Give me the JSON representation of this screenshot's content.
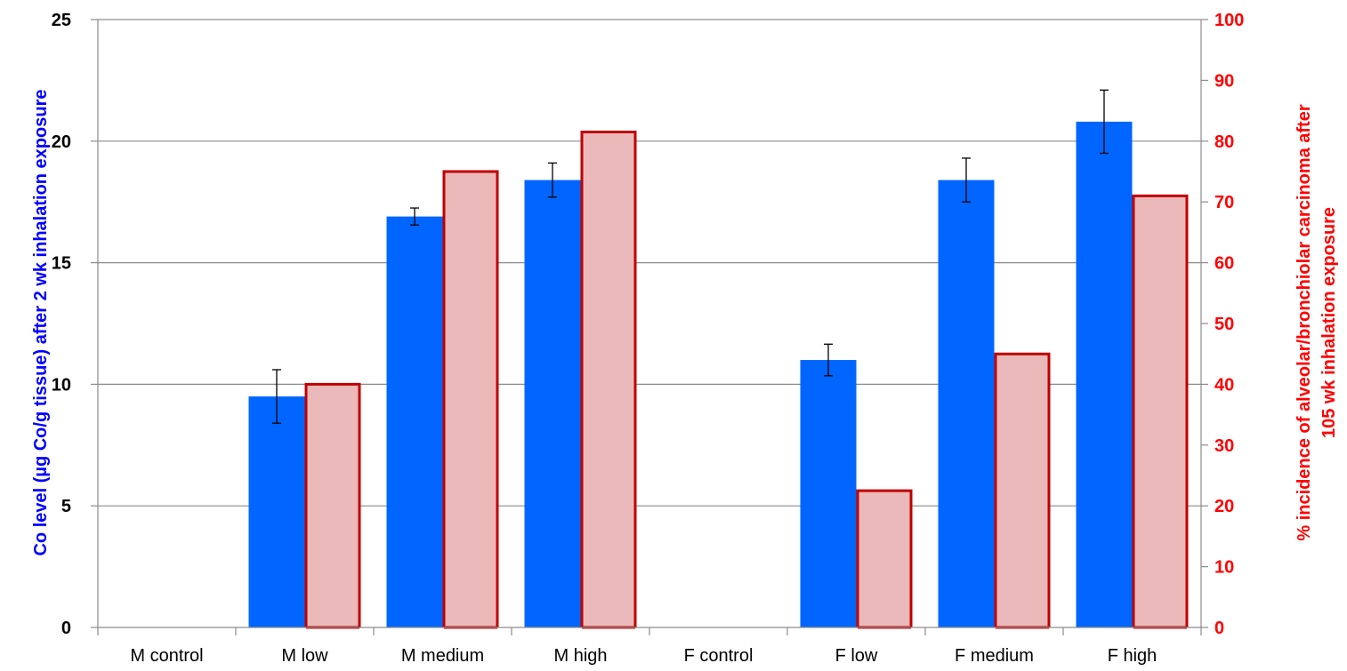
{
  "chart_data": {
    "type": "bar",
    "categories": [
      "M control",
      "M low",
      "M medium",
      "M high",
      "F control",
      "F low",
      "F medium",
      "F high"
    ],
    "series": [
      {
        "axis": "left",
        "values": [
          0,
          9.5,
          16.9,
          18.4,
          0,
          11.0,
          18.4,
          20.8
        ],
        "error": [
          0,
          1.1,
          0.35,
          0.7,
          0,
          0.65,
          0.9,
          1.3
        ],
        "color": "#0066ff"
      },
      {
        "axis": "right",
        "values": [
          0,
          40,
          75,
          81.5,
          0,
          22.5,
          45,
          71
        ],
        "fill": "#ebb9b9",
        "stroke": "#c00000"
      }
    ],
    "ylabel_left": "Co level (µg Co/g tissue) after 2 wk inhalation exposure",
    "ylabel_right_line1": "% incidence of alveolar/bronchiolar carcinoma after",
    "ylabel_right_line2": "105 wk inhalation exposure",
    "ylim_left": [
      0,
      25
    ],
    "ylim_right": [
      0,
      100
    ],
    "left_ticks": [
      "0",
      "5",
      "10",
      "15",
      "20",
      "25"
    ],
    "right_ticks": [
      "0",
      "10",
      "20",
      "30",
      "40",
      "50",
      "60",
      "70",
      "80",
      "90",
      "100"
    ],
    "left_axis_color": "#0000ff",
    "right_axis_color": "#ff0000",
    "grid": true
  }
}
